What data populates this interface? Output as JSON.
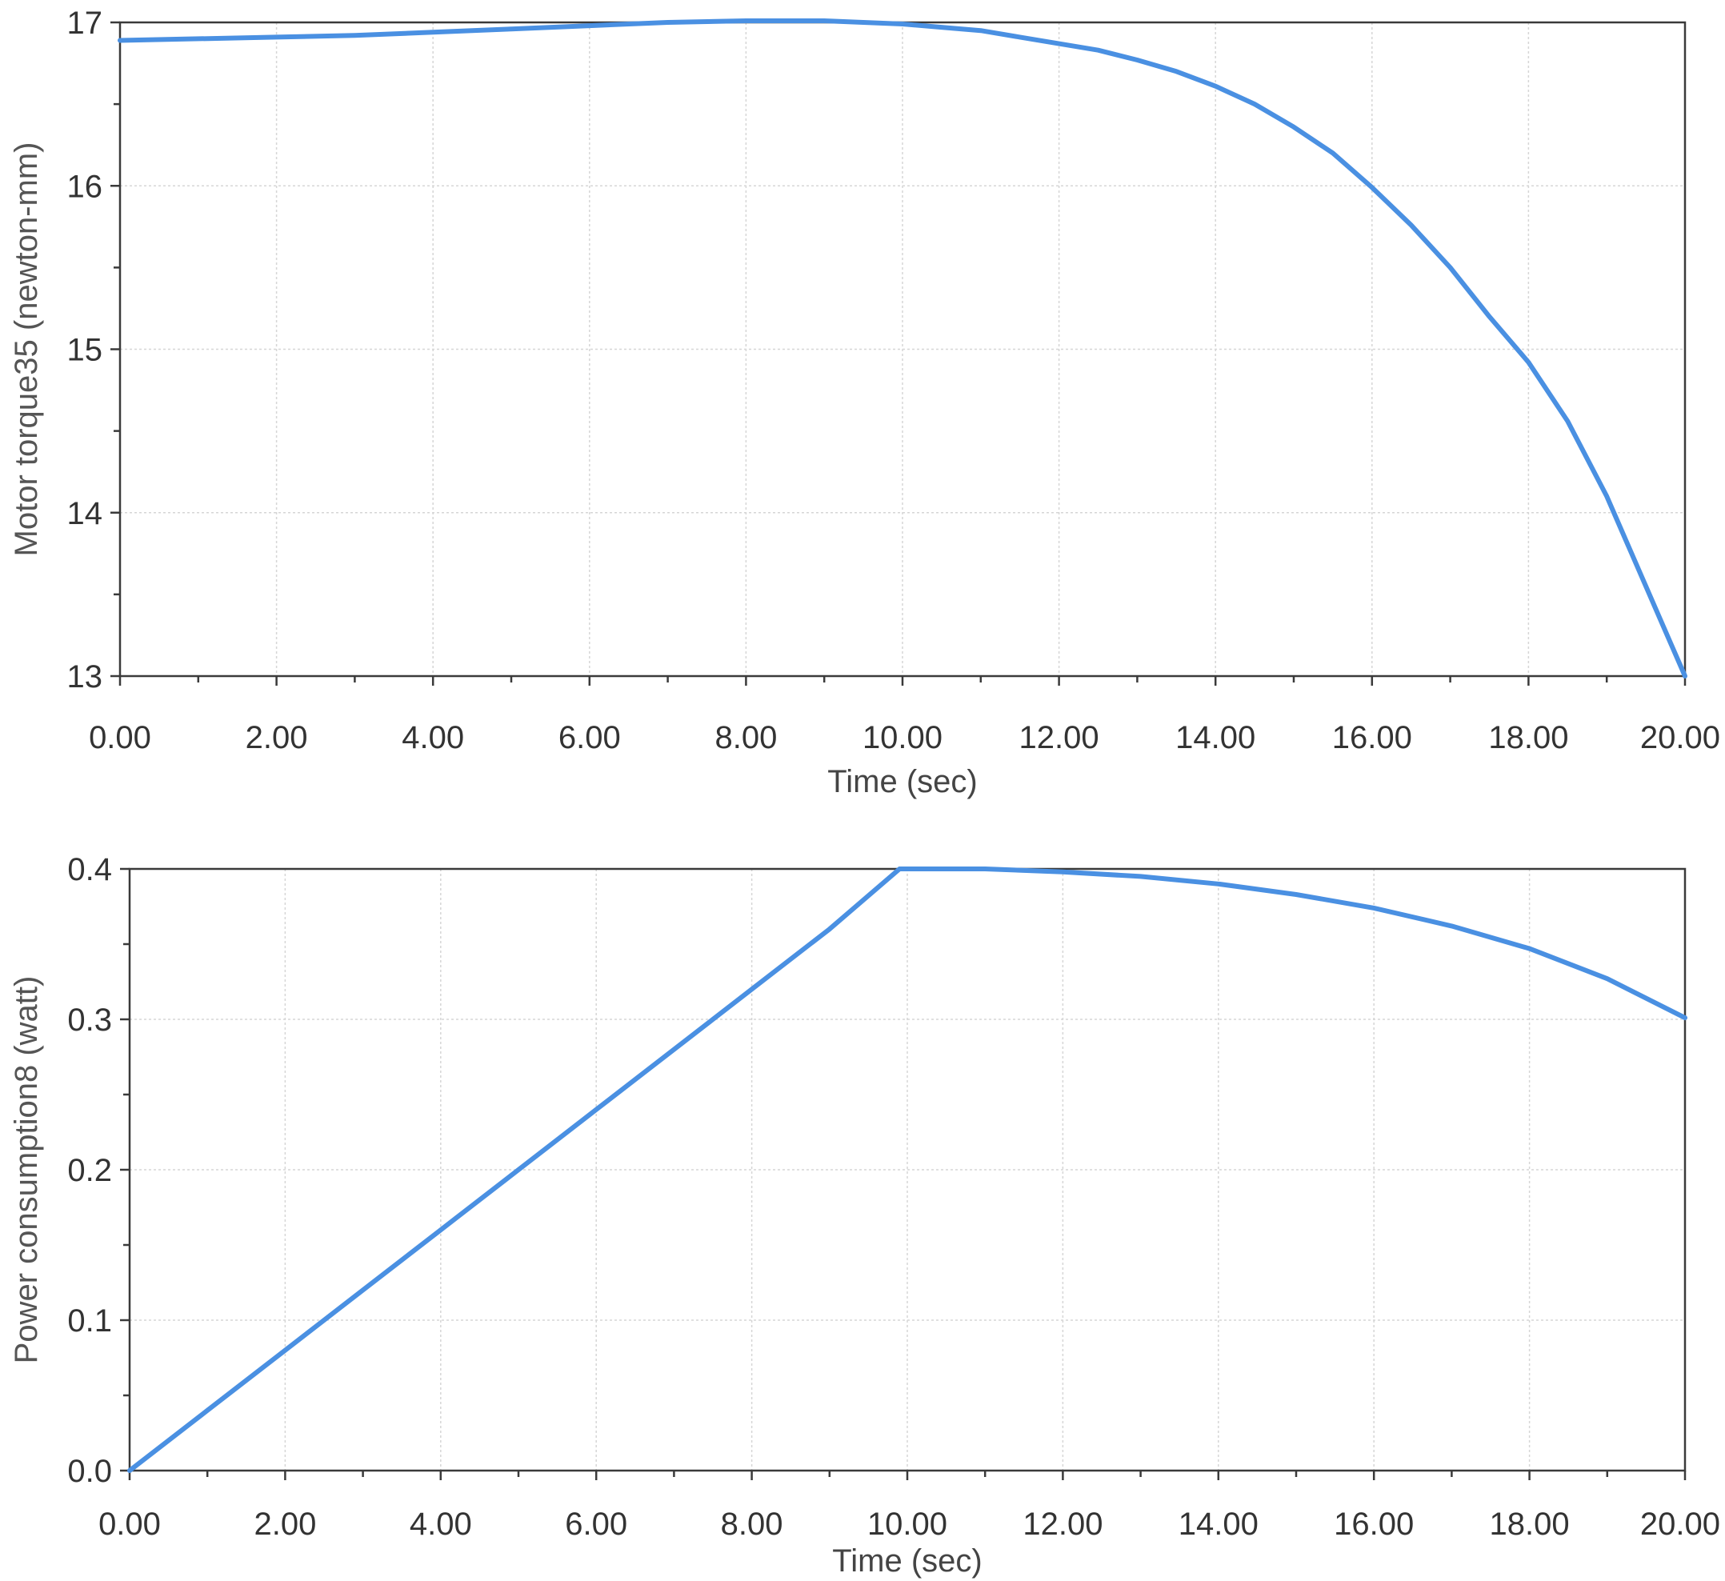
{
  "chart_data": [
    {
      "type": "line",
      "xlabel": "Time (sec)",
      "ylabel": "Motor  torque35 (newton-mm)",
      "xlim": [
        0,
        20
      ],
      "ylim": [
        13,
        17
      ],
      "xticks": [
        "0.00",
        "2.00",
        "4.00",
        "6.00",
        "8.00",
        "10.00",
        "12.00",
        "14.00",
        "16.00",
        "18.00",
        "20.00"
      ],
      "yticks": [
        "13",
        "14",
        "15",
        "16",
        "17"
      ],
      "grid": true,
      "series": [
        {
          "color": "#4a90e2",
          "x": [
            0,
            2,
            3,
            4,
            5,
            6,
            7,
            8,
            9,
            10,
            10.5,
            11,
            11.5,
            12,
            12.5,
            13,
            13.5,
            14,
            14.5,
            15,
            15.5,
            16,
            16.5,
            17,
            17.5,
            18,
            18.5,
            19,
            19.5,
            19.8,
            20
          ],
          "values": [
            16.89,
            16.91,
            16.92,
            16.94,
            16.96,
            16.98,
            17.0,
            17.01,
            17.01,
            16.99,
            16.97,
            16.95,
            16.91,
            16.87,
            16.83,
            16.77,
            16.7,
            16.61,
            16.5,
            16.36,
            16.2,
            15.99,
            15.76,
            15.5,
            15.2,
            14.92,
            14.56,
            14.1,
            13.55,
            13.22,
            13.0
          ]
        }
      ]
    },
    {
      "type": "line",
      "xlabel": "Time (sec)",
      "ylabel": "Power  consumption8 (watt)",
      "xlim": [
        0,
        20
      ],
      "ylim": [
        0.0,
        0.4
      ],
      "xticks": [
        "0.00",
        "2.00",
        "4.00",
        "6.00",
        "8.00",
        "10.00",
        "12.00",
        "14.00",
        "16.00",
        "18.00",
        "20.00"
      ],
      "yticks": [
        "0.0",
        "0.1",
        "0.2",
        "0.3",
        "0.4"
      ],
      "grid": true,
      "series": [
        {
          "color": "#4a90e2",
          "x": [
            0,
            1,
            2,
            3,
            4,
            5,
            6,
            7,
            8,
            9,
            9.9,
            10,
            11,
            12,
            13,
            14,
            15,
            16,
            17,
            18,
            19,
            20
          ],
          "values": [
            0.0,
            0.04,
            0.08,
            0.12,
            0.16,
            0.2,
            0.24,
            0.28,
            0.32,
            0.36,
            0.4,
            0.4,
            0.4,
            0.398,
            0.395,
            0.39,
            0.383,
            0.374,
            0.362,
            0.347,
            0.327,
            0.301
          ]
        }
      ]
    }
  ]
}
